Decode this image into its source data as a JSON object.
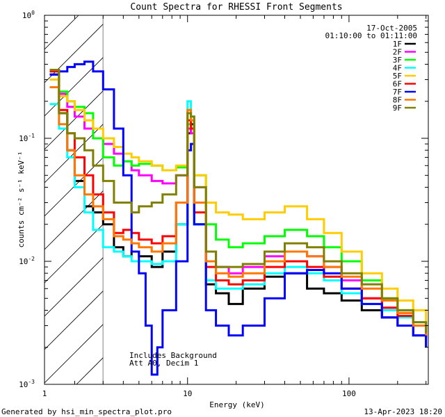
{
  "chart_data": {
    "type": "line",
    "title": "Count Spectra for RHESSI Front Segments",
    "xlabel": "Energy (keV)",
    "ylabel": "counts cm⁻² s⁻¹ keV⁻¹",
    "xscale": "log",
    "yscale": "log",
    "xlim": [
      1.3,
      310
    ],
    "ylim": [
      0.001,
      1
    ],
    "x_ticks": [
      {
        "value": 1,
        "label": "1"
      },
      {
        "value": 10,
        "label": "10"
      },
      {
        "value": 100,
        "label": "100"
      }
    ],
    "y_ticks": [
      {
        "value": 0.001,
        "mantissa": "10",
        "exp": "-3"
      },
      {
        "value": 0.01,
        "mantissa": "10",
        "exp": "-2"
      },
      {
        "value": 0.1,
        "mantissa": "10",
        "exp": "-1"
      },
      {
        "value": 1,
        "mantissa": "10",
        "exp": "0"
      }
    ],
    "hatched_region": {
      "from": 1.3,
      "to": 3.0
    },
    "legend_header": [
      "17-Oct-2005",
      "01:10:00 to 01:11:00"
    ],
    "annotations": [
      "Includes Background",
      "Att A0, Decim 1"
    ],
    "footer_left": "Generated by hsi_min_spectra_plot.pro",
    "footer_right": "13-Apr-2023 18:20",
    "series": [
      {
        "name": "1F",
        "color": "#000000",
        "points": [
          [
            1.4,
            0.33
          ],
          [
            1.6,
            0.16
          ],
          [
            1.8,
            0.08
          ],
          [
            2.0,
            0.045
          ],
          [
            2.3,
            0.028
          ],
          [
            2.6,
            0.025
          ],
          [
            3.0,
            0.02
          ],
          [
            3.5,
            0.013
          ],
          [
            4.0,
            0.011
          ],
          [
            4.5,
            0.012
          ],
          [
            5.0,
            0.011
          ],
          [
            6.0,
            0.009
          ],
          [
            7.0,
            0.012
          ],
          [
            8.5,
            0.02
          ],
          [
            10,
            0.11
          ],
          [
            10.5,
            0.13
          ],
          [
            11,
            0.02
          ],
          [
            13,
            0.0065
          ],
          [
            15,
            0.0055
          ],
          [
            18,
            0.0045
          ],
          [
            22,
            0.006
          ],
          [
            30,
            0.0075
          ],
          [
            40,
            0.008
          ],
          [
            55,
            0.006
          ],
          [
            70,
            0.0055
          ],
          [
            90,
            0.0048
          ],
          [
            120,
            0.004
          ],
          [
            160,
            0.0035
          ],
          [
            200,
            0.003
          ],
          [
            250,
            0.0025
          ],
          [
            300,
            0.002
          ]
        ]
      },
      {
        "name": "2F",
        "color": "#ff00ff",
        "points": [
          [
            1.4,
            0.36
          ],
          [
            1.6,
            0.23
          ],
          [
            1.8,
            0.18
          ],
          [
            2.0,
            0.15
          ],
          [
            2.3,
            0.12
          ],
          [
            2.6,
            0.1
          ],
          [
            3.0,
            0.09
          ],
          [
            3.5,
            0.075
          ],
          [
            4.0,
            0.065
          ],
          [
            4.5,
            0.055
          ],
          [
            5.0,
            0.05
          ],
          [
            6.0,
            0.045
          ],
          [
            7.0,
            0.043
          ],
          [
            8.5,
            0.05
          ],
          [
            10,
            0.12
          ],
          [
            10.5,
            0.11
          ],
          [
            11,
            0.04
          ],
          [
            13,
            0.012
          ],
          [
            15,
            0.009
          ],
          [
            18,
            0.008
          ],
          [
            22,
            0.009
          ],
          [
            30,
            0.011
          ],
          [
            40,
            0.012
          ],
          [
            55,
            0.011
          ],
          [
            70,
            0.009
          ],
          [
            90,
            0.007
          ],
          [
            120,
            0.005
          ],
          [
            160,
            0.0042
          ],
          [
            200,
            0.0038
          ],
          [
            250,
            0.003
          ],
          [
            300,
            0.0025
          ]
        ]
      },
      {
        "name": "3F",
        "color": "#00ff00",
        "points": [
          [
            1.4,
            0.36
          ],
          [
            1.6,
            0.24
          ],
          [
            1.8,
            0.2
          ],
          [
            2.0,
            0.18
          ],
          [
            2.3,
            0.16
          ],
          [
            2.6,
            0.1
          ],
          [
            3.0,
            0.07
          ],
          [
            3.5,
            0.06
          ],
          [
            4.0,
            0.065
          ],
          [
            4.5,
            0.06
          ],
          [
            5.0,
            0.062
          ],
          [
            6.0,
            0.06
          ],
          [
            7.0,
            0.055
          ],
          [
            8.5,
            0.058
          ],
          [
            10,
            0.13
          ],
          [
            10.5,
            0.12
          ],
          [
            11,
            0.05
          ],
          [
            13,
            0.02
          ],
          [
            15,
            0.015
          ],
          [
            18,
            0.013
          ],
          [
            22,
            0.014
          ],
          [
            30,
            0.016
          ],
          [
            40,
            0.018
          ],
          [
            55,
            0.016
          ],
          [
            70,
            0.013
          ],
          [
            90,
            0.01
          ],
          [
            120,
            0.007
          ],
          [
            160,
            0.005
          ],
          [
            200,
            0.004
          ],
          [
            250,
            0.0032
          ],
          [
            300,
            0.0025
          ]
        ]
      },
      {
        "name": "4F",
        "color": "#00ffff",
        "points": [
          [
            1.4,
            0.19
          ],
          [
            1.6,
            0.12
          ],
          [
            1.8,
            0.07
          ],
          [
            2.0,
            0.04
          ],
          [
            2.3,
            0.025
          ],
          [
            2.6,
            0.018
          ],
          [
            3.0,
            0.013
          ],
          [
            3.5,
            0.012
          ],
          [
            4.0,
            0.011
          ],
          [
            4.5,
            0.01
          ],
          [
            5.0,
            0.01
          ],
          [
            6.0,
            0.0095
          ],
          [
            7.0,
            0.01
          ],
          [
            8.5,
            0.02
          ],
          [
            10,
            0.2
          ],
          [
            10.5,
            0.15
          ],
          [
            11,
            0.02
          ],
          [
            13,
            0.007
          ],
          [
            15,
            0.006
          ],
          [
            18,
            0.006
          ],
          [
            22,
            0.0065
          ],
          [
            30,
            0.008
          ],
          [
            40,
            0.009
          ],
          [
            55,
            0.008
          ],
          [
            70,
            0.007
          ],
          [
            90,
            0.0055
          ],
          [
            120,
            0.0045
          ],
          [
            160,
            0.004
          ],
          [
            200,
            0.0035
          ],
          [
            250,
            0.003
          ],
          [
            300,
            0.0025
          ]
        ]
      },
      {
        "name": "5F",
        "color": "#ffcc00",
        "points": [
          [
            1.4,
            0.3
          ],
          [
            1.6,
            0.22
          ],
          [
            1.8,
            0.2
          ],
          [
            2.0,
            0.17
          ],
          [
            2.3,
            0.14
          ],
          [
            2.6,
            0.12
          ],
          [
            3.0,
            0.1
          ],
          [
            3.5,
            0.085
          ],
          [
            4.0,
            0.075
          ],
          [
            4.5,
            0.07
          ],
          [
            5.0,
            0.065
          ],
          [
            6.0,
            0.06
          ],
          [
            7.0,
            0.055
          ],
          [
            8.5,
            0.06
          ],
          [
            10,
            0.14
          ],
          [
            10.5,
            0.12
          ],
          [
            11,
            0.05
          ],
          [
            13,
            0.03
          ],
          [
            15,
            0.025
          ],
          [
            18,
            0.024
          ],
          [
            22,
            0.022
          ],
          [
            30,
            0.025
          ],
          [
            40,
            0.028
          ],
          [
            55,
            0.022
          ],
          [
            70,
            0.017
          ],
          [
            90,
            0.012
          ],
          [
            120,
            0.008
          ],
          [
            160,
            0.006
          ],
          [
            200,
            0.0048
          ],
          [
            250,
            0.004
          ],
          [
            300,
            0.003
          ]
        ]
      },
      {
        "name": "6F",
        "color": "#ff0000",
        "points": [
          [
            1.4,
            0.35
          ],
          [
            1.6,
            0.17
          ],
          [
            1.8,
            0.11
          ],
          [
            2.0,
            0.07
          ],
          [
            2.3,
            0.05
          ],
          [
            2.6,
            0.035
          ],
          [
            3.0,
            0.025
          ],
          [
            3.5,
            0.017
          ],
          [
            4.0,
            0.018
          ],
          [
            4.5,
            0.017
          ],
          [
            5.0,
            0.015
          ],
          [
            6.0,
            0.014
          ],
          [
            7.0,
            0.016
          ],
          [
            8.5,
            0.03
          ],
          [
            10,
            0.14
          ],
          [
            10.5,
            0.12
          ],
          [
            11,
            0.025
          ],
          [
            13,
            0.009
          ],
          [
            15,
            0.007
          ],
          [
            18,
            0.0065
          ],
          [
            22,
            0.007
          ],
          [
            30,
            0.009
          ],
          [
            40,
            0.01
          ],
          [
            55,
            0.009
          ],
          [
            70,
            0.0075
          ],
          [
            90,
            0.006
          ],
          [
            120,
            0.005
          ],
          [
            160,
            0.0042
          ],
          [
            200,
            0.0036
          ],
          [
            250,
            0.003
          ],
          [
            300,
            0.0024
          ]
        ]
      },
      {
        "name": "7F",
        "color": "#0000ff",
        "points": [
          [
            1.4,
            0.33
          ],
          [
            1.6,
            0.35
          ],
          [
            1.8,
            0.38
          ],
          [
            2.0,
            0.4
          ],
          [
            2.3,
            0.42
          ],
          [
            2.6,
            0.35
          ],
          [
            3.0,
            0.25
          ],
          [
            3.5,
            0.12
          ],
          [
            4.0,
            0.05
          ],
          [
            4.5,
            0.012
          ],
          [
            5.0,
            0.008
          ],
          [
            5.5,
            0.003
          ],
          [
            6.0,
            0.0012
          ],
          [
            6.5,
            0.002
          ],
          [
            7.0,
            0.004
          ],
          [
            8.5,
            0.01
          ],
          [
            10,
            0.08
          ],
          [
            10.5,
            0.09
          ],
          [
            11,
            0.02
          ],
          [
            13,
            0.004
          ],
          [
            15,
            0.003
          ],
          [
            18,
            0.0025
          ],
          [
            22,
            0.003
          ],
          [
            30,
            0.005
          ],
          [
            40,
            0.008
          ],
          [
            55,
            0.0085
          ],
          [
            70,
            0.008
          ],
          [
            90,
            0.006
          ],
          [
            120,
            0.0045
          ],
          [
            160,
            0.0035
          ],
          [
            200,
            0.003
          ],
          [
            250,
            0.0025
          ],
          [
            300,
            0.002
          ]
        ]
      },
      {
        "name": "8F",
        "color": "#ff7700",
        "points": [
          [
            1.4,
            0.26
          ],
          [
            1.6,
            0.13
          ],
          [
            1.8,
            0.08
          ],
          [
            2.0,
            0.05
          ],
          [
            2.3,
            0.035
          ],
          [
            2.6,
            0.028
          ],
          [
            3.0,
            0.022
          ],
          [
            3.5,
            0.016
          ],
          [
            4.0,
            0.015
          ],
          [
            4.5,
            0.014
          ],
          [
            5.0,
            0.013
          ],
          [
            6.0,
            0.012
          ],
          [
            7.0,
            0.014
          ],
          [
            8.5,
            0.03
          ],
          [
            10,
            0.17
          ],
          [
            10.5,
            0.14
          ],
          [
            11,
            0.03
          ],
          [
            13,
            0.01
          ],
          [
            15,
            0.008
          ],
          [
            18,
            0.0075
          ],
          [
            22,
            0.008
          ],
          [
            30,
            0.01
          ],
          [
            40,
            0.012
          ],
          [
            55,
            0.011
          ],
          [
            70,
            0.009
          ],
          [
            90,
            0.0075
          ],
          [
            120,
            0.006
          ],
          [
            160,
            0.0048
          ],
          [
            200,
            0.0038
          ],
          [
            250,
            0.003
          ],
          [
            300,
            0.0025
          ]
        ]
      },
      {
        "name": "9F",
        "color": "#808000",
        "points": [
          [
            1.4,
            0.36
          ],
          [
            1.6,
            0.16
          ],
          [
            1.8,
            0.11
          ],
          [
            2.0,
            0.1
          ],
          [
            2.3,
            0.08
          ],
          [
            2.6,
            0.06
          ],
          [
            3.0,
            0.045
          ],
          [
            3.5,
            0.03
          ],
          [
            4.0,
            0.03
          ],
          [
            4.5,
            0.025
          ],
          [
            5.0,
            0.028
          ],
          [
            6.0,
            0.03
          ],
          [
            7.0,
            0.035
          ],
          [
            8.5,
            0.05
          ],
          [
            10,
            0.16
          ],
          [
            10.5,
            0.15
          ],
          [
            11,
            0.04
          ],
          [
            13,
            0.012
          ],
          [
            15,
            0.009
          ],
          [
            18,
            0.009
          ],
          [
            22,
            0.0095
          ],
          [
            30,
            0.012
          ],
          [
            40,
            0.014
          ],
          [
            55,
            0.013
          ],
          [
            70,
            0.01
          ],
          [
            90,
            0.008
          ],
          [
            120,
            0.0065
          ],
          [
            160,
            0.005
          ],
          [
            200,
            0.004
          ],
          [
            250,
            0.0032
          ],
          [
            300,
            0.0026
          ]
        ]
      }
    ]
  }
}
